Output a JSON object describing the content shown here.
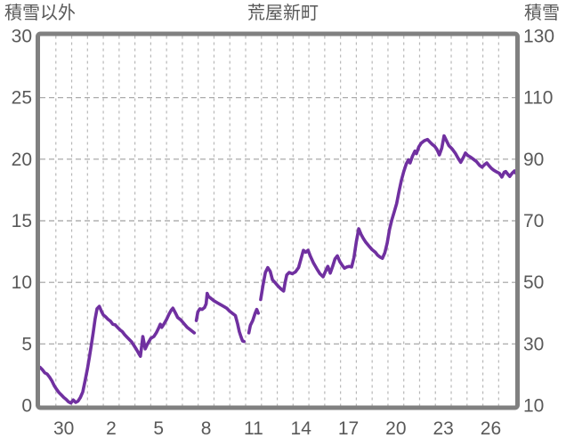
{
  "chart_data": {
    "type": "line",
    "title": "荒屋新町",
    "y_axis_left": {
      "title": "積雪以外",
      "tick_values": [
        30,
        25,
        20,
        15,
        10,
        5,
        0
      ],
      "min": 0,
      "max": 30
    },
    "y_axis_right": {
      "title": "積雪",
      "tick_values": [
        130,
        110,
        90,
        70,
        50,
        30,
        10
      ],
      "min": 10,
      "max": 130
    },
    "x_axis": {
      "tick_labels": [
        "30",
        "2",
        "5",
        "8",
        "11",
        "14",
        "17",
        "20",
        "23",
        "26"
      ],
      "tick_positions_days": [
        0,
        3,
        6,
        9,
        12,
        15,
        18,
        21,
        24,
        27
      ],
      "min_days": -1.5,
      "max_days": 28.55,
      "day_gridline_offset": -0.5,
      "day_gridline_step": 1,
      "grid": "dashed"
    },
    "style": {
      "line_color": "#7030A0",
      "line_width": 3.6,
      "frame_color": "#808080",
      "frame_width": 5,
      "h_grid_color": "#a0a0a0",
      "v_grid_color": "#b7b7b7",
      "text_color": "#595959",
      "background": "#ffffff"
    },
    "series": [
      {
        "name": "積雪",
        "unit_axis": "right",
        "points": [
          [
            -1.5,
            3.1
          ],
          [
            -1.35,
            2.9
          ],
          [
            -1.2,
            2.65
          ],
          [
            -1.05,
            2.55
          ],
          [
            -0.9,
            2.3
          ],
          [
            -0.75,
            2.0
          ],
          [
            -0.6,
            1.6
          ],
          [
            -0.45,
            1.3
          ],
          [
            -0.3,
            1.05
          ],
          [
            -0.15,
            0.85
          ],
          [
            0,
            0.65
          ],
          [
            0.15,
            0.5
          ],
          [
            0.3,
            0.3
          ],
          [
            0.45,
            0.2
          ],
          [
            0.6,
            0.45
          ],
          [
            0.75,
            0.25
          ],
          [
            0.9,
            0.35
          ],
          [
            1.05,
            0.65
          ],
          [
            1.2,
            1.1
          ],
          [
            1.35,
            2.0
          ],
          [
            1.5,
            3.0
          ],
          [
            1.62,
            3.9
          ],
          [
            1.74,
            4.9
          ],
          [
            1.86,
            5.9
          ],
          [
            1.98,
            7.0
          ],
          [
            2.1,
            7.85
          ],
          [
            2.25,
            8.05
          ],
          [
            2.4,
            7.6
          ],
          [
            2.5,
            7.35
          ],
          [
            2.65,
            7.2
          ],
          [
            2.8,
            7.0
          ],
          [
            2.95,
            6.85
          ],
          [
            3.1,
            6.6
          ],
          [
            3.25,
            6.55
          ],
          [
            3.4,
            6.35
          ],
          [
            3.55,
            6.15
          ],
          [
            3.7,
            6.0
          ],
          [
            3.85,
            5.75
          ],
          [
            4.0,
            5.55
          ],
          [
            4.15,
            5.35
          ],
          [
            4.3,
            5.15
          ],
          [
            4.45,
            4.85
          ],
          [
            4.6,
            4.55
          ],
          [
            4.75,
            4.2
          ],
          [
            4.85,
            4.0
          ],
          [
            5.0,
            5.6
          ],
          [
            5.15,
            4.6
          ],
          [
            5.3,
            5.0
          ],
          [
            5.5,
            5.45
          ],
          [
            5.7,
            5.6
          ],
          [
            5.85,
            5.9
          ],
          [
            6.0,
            6.3
          ],
          [
            6.1,
            6.6
          ],
          [
            6.2,
            6.35
          ],
          [
            6.35,
            6.65
          ],
          [
            6.5,
            7.0
          ],
          [
            6.65,
            7.4
          ],
          [
            6.8,
            7.75
          ],
          [
            6.9,
            7.9
          ],
          [
            7.05,
            7.55
          ],
          [
            7.2,
            7.15
          ],
          [
            7.4,
            6.95
          ],
          [
            7.6,
            6.65
          ],
          [
            7.8,
            6.35
          ],
          [
            7.95,
            6.2
          ],
          [
            8.1,
            6.05
          ],
          [
            8.25,
            5.9
          ],
          [
            8.31,
            null
          ],
          [
            8.38,
            6.9
          ],
          [
            8.48,
            7.6
          ],
          [
            8.6,
            7.85
          ],
          [
            8.75,
            7.8
          ],
          [
            8.9,
            7.95
          ],
          [
            9.0,
            8.25
          ],
          [
            9.07,
            9.1
          ],
          [
            9.15,
            8.85
          ],
          [
            9.3,
            8.7
          ],
          [
            9.5,
            8.5
          ],
          [
            9.7,
            8.35
          ],
          [
            9.9,
            8.2
          ],
          [
            10.1,
            8.05
          ],
          [
            10.3,
            7.9
          ],
          [
            10.5,
            7.65
          ],
          [
            10.7,
            7.45
          ],
          [
            10.85,
            7.3
          ],
          [
            11.0,
            6.6
          ],
          [
            11.1,
            6.0
          ],
          [
            11.2,
            5.6
          ],
          [
            11.3,
            5.25
          ],
          [
            11.4,
            5.2
          ],
          [
            11.5,
            null
          ],
          [
            11.7,
            5.9
          ],
          [
            11.8,
            6.5
          ],
          [
            11.95,
            6.9
          ],
          [
            12.1,
            7.5
          ],
          [
            12.2,
            7.8
          ],
          [
            12.3,
            7.5
          ],
          [
            12.37,
            null
          ],
          [
            12.45,
            8.6
          ],
          [
            12.6,
            9.8
          ],
          [
            12.75,
            10.8
          ],
          [
            12.9,
            11.2
          ],
          [
            13.05,
            10.9
          ],
          [
            13.2,
            10.2
          ],
          [
            13.35,
            10.0
          ],
          [
            13.55,
            9.7
          ],
          [
            13.75,
            9.45
          ],
          [
            13.9,
            9.3
          ],
          [
            14.0,
            10.0
          ],
          [
            14.1,
            10.6
          ],
          [
            14.25,
            10.8
          ],
          [
            14.45,
            10.7
          ],
          [
            14.65,
            10.85
          ],
          [
            14.85,
            11.2
          ],
          [
            15.0,
            11.9
          ],
          [
            15.15,
            12.6
          ],
          [
            15.3,
            12.45
          ],
          [
            15.45,
            12.6
          ],
          [
            15.6,
            12.1
          ],
          [
            15.8,
            11.55
          ],
          [
            16.0,
            11.1
          ],
          [
            16.2,
            10.7
          ],
          [
            16.4,
            10.45
          ],
          [
            16.55,
            10.9
          ],
          [
            16.7,
            11.3
          ],
          [
            16.85,
            10.75
          ],
          [
            17.0,
            11.3
          ],
          [
            17.15,
            11.9
          ],
          [
            17.3,
            12.15
          ],
          [
            17.45,
            11.7
          ],
          [
            17.6,
            11.4
          ],
          [
            17.75,
            11.15
          ],
          [
            17.9,
            11.25
          ],
          [
            18.05,
            11.3
          ],
          [
            18.2,
            11.25
          ],
          [
            18.35,
            12.0
          ],
          [
            18.5,
            13.3
          ],
          [
            18.65,
            14.35
          ],
          [
            18.8,
            13.9
          ],
          [
            18.95,
            13.55
          ],
          [
            19.1,
            13.25
          ],
          [
            19.3,
            12.95
          ],
          [
            19.5,
            12.65
          ],
          [
            19.7,
            12.45
          ],
          [
            19.85,
            12.2
          ],
          [
            20.0,
            12.05
          ],
          [
            20.15,
            11.95
          ],
          [
            20.3,
            12.4
          ],
          [
            20.45,
            13.2
          ],
          [
            20.6,
            14.3
          ],
          [
            20.75,
            15.1
          ],
          [
            20.9,
            15.75
          ],
          [
            21.05,
            16.4
          ],
          [
            21.2,
            17.4
          ],
          [
            21.35,
            18.3
          ],
          [
            21.5,
            19.0
          ],
          [
            21.65,
            19.6
          ],
          [
            21.8,
            19.95
          ],
          [
            21.9,
            19.7
          ],
          [
            22.05,
            20.25
          ],
          [
            22.2,
            20.65
          ],
          [
            22.3,
            20.45
          ],
          [
            22.45,
            21.0
          ],
          [
            22.6,
            21.3
          ],
          [
            22.8,
            21.5
          ],
          [
            23.0,
            21.6
          ],
          [
            23.15,
            21.4
          ],
          [
            23.3,
            21.2
          ],
          [
            23.45,
            21.05
          ],
          [
            23.6,
            20.8
          ],
          [
            23.75,
            20.35
          ],
          [
            23.9,
            20.9
          ],
          [
            24.05,
            21.9
          ],
          [
            24.2,
            21.5
          ],
          [
            24.35,
            21.1
          ],
          [
            24.55,
            20.85
          ],
          [
            24.75,
            20.5
          ],
          [
            24.95,
            20.05
          ],
          [
            25.1,
            19.75
          ],
          [
            25.25,
            20.1
          ],
          [
            25.4,
            20.5
          ],
          [
            25.55,
            20.3
          ],
          [
            25.75,
            20.15
          ],
          [
            25.95,
            19.95
          ],
          [
            26.1,
            19.8
          ],
          [
            26.3,
            19.5
          ],
          [
            26.45,
            19.35
          ],
          [
            26.6,
            19.55
          ],
          [
            26.75,
            19.7
          ],
          [
            26.9,
            19.45
          ],
          [
            27.05,
            19.25
          ],
          [
            27.2,
            19.1
          ],
          [
            27.4,
            18.95
          ],
          [
            27.55,
            18.85
          ],
          [
            27.7,
            18.55
          ],
          [
            27.85,
            18.95
          ],
          [
            27.95,
            19.0
          ],
          [
            28.1,
            18.75
          ],
          [
            28.2,
            18.6
          ],
          [
            28.35,
            18.85
          ],
          [
            28.5,
            19.05
          ],
          [
            28.55,
            18.9
          ]
        ]
      }
    ]
  }
}
